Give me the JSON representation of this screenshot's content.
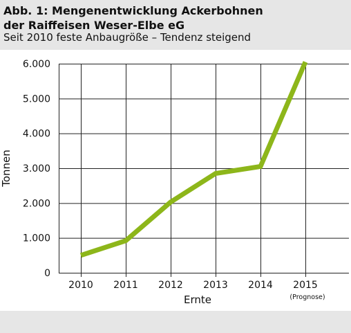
{
  "chart_data": {
    "type": "line",
    "title_line1": "Abb. 1: Mengenentwicklung Ackerbohnen",
    "title_line2": "der Raiffeisen Weser-Elbe eG",
    "subtitle": "Seit 2010 feste Anbaugröße – Tendenz steigend",
    "xlabel": "Ernte",
    "ylabel": "Tonnen",
    "x": [
      "2010",
      "2011",
      "2012",
      "2013",
      "2014",
      "2015"
    ],
    "x_notes": [
      "",
      "",
      "",
      "",
      "",
      "(Prognose)"
    ],
    "values": [
      500,
      920,
      2030,
      2850,
      3050,
      6050
    ],
    "ylim": [
      0,
      6000
    ],
    "yticks": [
      0,
      1000,
      2000,
      3000,
      4000,
      5000,
      6000
    ],
    "ytick_labels": [
      "0",
      "1.000",
      "2.000",
      "3.000",
      "4.000",
      "5.000",
      "6.000"
    ],
    "grid": true,
    "line_color": "#8db61a",
    "background_color": "#ffffff"
  }
}
